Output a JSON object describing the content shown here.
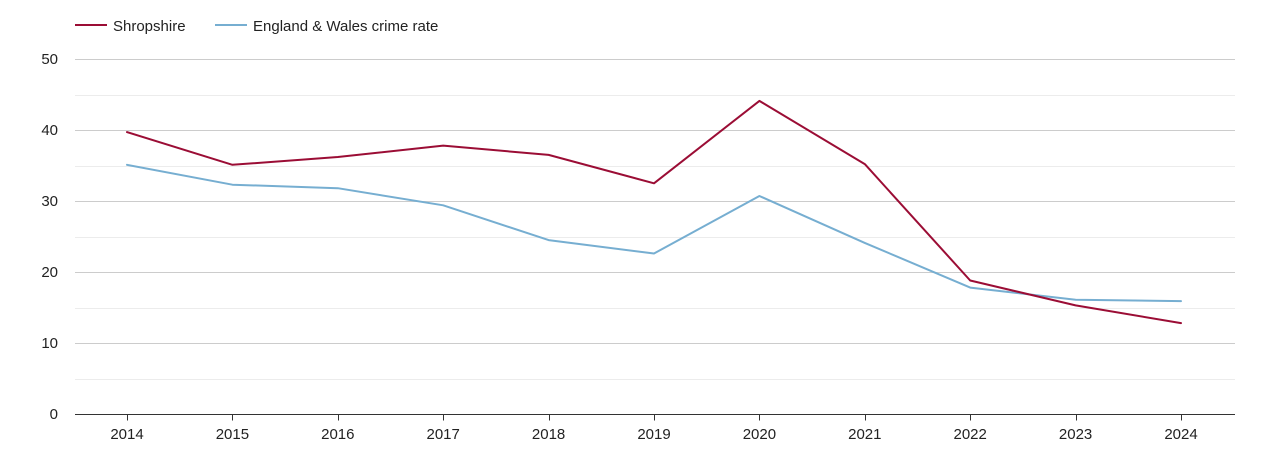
{
  "chart_data": {
    "type": "line",
    "title": "",
    "xlabel": "",
    "ylabel": "",
    "categories": [
      "2014",
      "2015",
      "2016",
      "2017",
      "2018",
      "2019",
      "2020",
      "2021",
      "2022",
      "2023",
      "2024"
    ],
    "ylim": [
      0,
      50
    ],
    "yticks": [
      "0",
      "10",
      "20",
      "30",
      "40",
      "50"
    ],
    "grid": true,
    "legend_position": "top-left",
    "series": [
      {
        "name": "Shropshire",
        "color": "#9b0d35",
        "values": [
          39.7,
          35.1,
          36.2,
          37.8,
          36.5,
          32.5,
          44.1,
          35.2,
          18.8,
          15.3,
          12.8
        ]
      },
      {
        "name": "England & Wales crime rate",
        "color": "#76aed1",
        "values": [
          35.1,
          32.3,
          31.8,
          29.4,
          24.5,
          22.6,
          30.7,
          24.1,
          17.8,
          16.1,
          15.9
        ]
      }
    ]
  }
}
